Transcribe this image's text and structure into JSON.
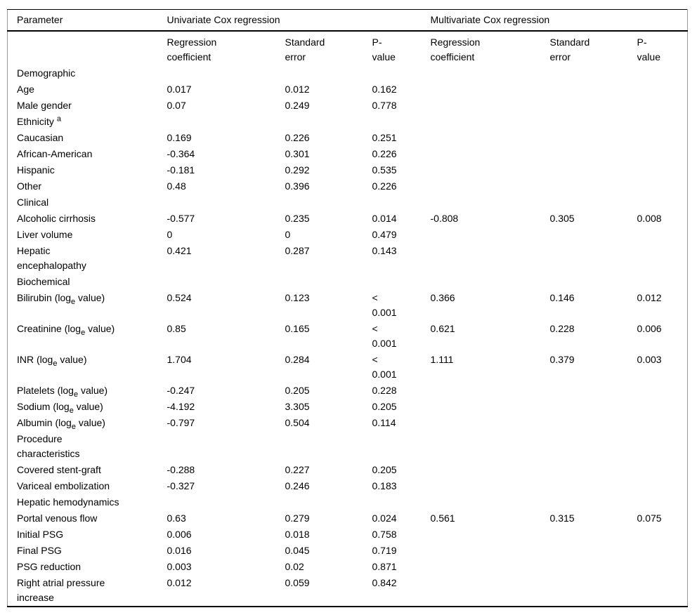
{
  "table": {
    "title_semantic": "Univariate and multivariate Cox regression results",
    "columns": {
      "parameter": "Parameter",
      "group_univariate": "Univariate Cox regression",
      "group_multivariate": "Multivariate Cox regression",
      "sub_regression": "Regression\ncoefficient",
      "sub_std_error": "Standard\nerror",
      "sub_p_value": "P-\nvalue"
    },
    "colors": {
      "rule": "#000000",
      "side_border": "#9a9a9a",
      "text": "#000000",
      "background": "#ffffff"
    },
    "rows": [
      {
        "label": "Demographic",
        "cells": [
          "",
          "",
          "",
          "",
          "",
          ""
        ]
      },
      {
        "label": "Age",
        "cells": [
          "0.017",
          "0.012",
          "0.162",
          "",
          "",
          ""
        ]
      },
      {
        "label": "Male gender",
        "cells": [
          "0.07",
          "0.249",
          "0.778",
          "",
          "",
          ""
        ]
      },
      {
        "label": "Ethnicity ^{a}",
        "cells": [
          "",
          "",
          "",
          "",
          "",
          ""
        ]
      },
      {
        "label": "Caucasian",
        "cells": [
          "0.169",
          "0.226",
          "0.251",
          "",
          "",
          ""
        ]
      },
      {
        "label": "African-American",
        "cells": [
          "-0.364",
          "0.301",
          "0.226",
          "",
          "",
          ""
        ]
      },
      {
        "label": "Hispanic",
        "cells": [
          "-0.181",
          "0.292",
          "0.535",
          "",
          "",
          ""
        ]
      },
      {
        "label": "Other",
        "cells": [
          "0.48",
          "0.396",
          "0.226",
          "",
          "",
          ""
        ]
      },
      {
        "label": "Clinical",
        "cells": [
          "",
          "",
          "",
          "",
          "",
          ""
        ]
      },
      {
        "label": "Alcoholic cirrhosis",
        "cells": [
          "-0.577",
          "0.235",
          "0.014",
          "-0.808",
          "0.305",
          "0.008"
        ]
      },
      {
        "label": "Liver volume",
        "cells": [
          "0",
          "0",
          "0.479",
          "",
          "",
          ""
        ]
      },
      {
        "label": "Hepatic\nencephalopathy",
        "cells": [
          "0.421",
          "0.287",
          "0.143",
          "",
          "",
          ""
        ]
      },
      {
        "label": "Biochemical",
        "cells": [
          "",
          "",
          "",
          "",
          "",
          ""
        ]
      },
      {
        "label": "Bilirubin (log_{e} value)",
        "cells": [
          "0.524",
          "0.123",
          "<\n0.001",
          "0.366",
          "0.146",
          "0.012"
        ]
      },
      {
        "label": "Creatinine (log_{e} value)",
        "cells": [
          "0.85",
          "0.165",
          "<\n0.001",
          "0.621",
          "0.228",
          "0.006"
        ]
      },
      {
        "label": "INR (log_{e} value)",
        "cells": [
          "1.704",
          "0.284",
          "<\n0.001",
          "1.111",
          "0.379",
          "0.003"
        ]
      },
      {
        "label": "Platelets (log_{e} value)",
        "cells": [
          "-0.247",
          "0.205",
          "0.228",
          "",
          "",
          ""
        ]
      },
      {
        "label": "Sodium (log_{e} value)",
        "cells": [
          "-4.192",
          "3.305",
          "0.205",
          "",
          "",
          ""
        ]
      },
      {
        "label": "Albumin (log_{e} value)",
        "cells": [
          "-0.797",
          "0.504",
          "0.114",
          "",
          "",
          ""
        ]
      },
      {
        "label": "Procedure\ncharacteristics",
        "cells": [
          "",
          "",
          "",
          "",
          "",
          ""
        ]
      },
      {
        "label": "Covered stent-graft",
        "cells": [
          "-0.288",
          "0.227",
          "0.205",
          "",
          "",
          ""
        ]
      },
      {
        "label": "Variceal embolization",
        "cells": [
          "-0.327",
          "0.246",
          "0.183",
          "",
          "",
          ""
        ]
      },
      {
        "label": "Hepatic hemodynamics",
        "cells": [
          "",
          "",
          "",
          "",
          "",
          ""
        ]
      },
      {
        "label": "Portal venous flow",
        "cells": [
          "0.63",
          "0.279",
          "0.024",
          "0.561",
          "0.315",
          "0.075"
        ]
      },
      {
        "label": "Initial PSG",
        "cells": [
          "0.006",
          "0.018",
          "0.758",
          "",
          "",
          ""
        ]
      },
      {
        "label": "Final PSG",
        "cells": [
          "0.016",
          "0.045",
          "0.719",
          "",
          "",
          ""
        ]
      },
      {
        "label": "PSG reduction",
        "cells": [
          "0.003",
          "0.02",
          "0.871",
          "",
          "",
          ""
        ]
      },
      {
        "label": "Right atrial pressure\nincrease",
        "cells": [
          "0.012",
          "0.059",
          "0.842",
          "",
          "",
          ""
        ]
      }
    ]
  }
}
